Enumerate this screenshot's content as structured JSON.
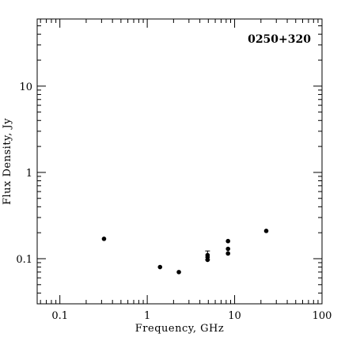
{
  "chart_data": {
    "type": "scatter",
    "title": "0250+320",
    "xlabel": "Frequency, GHz",
    "ylabel": "Flux Density, Jy",
    "xscale": "log",
    "yscale": "log",
    "xlim": [
      0.055,
      100
    ],
    "ylim": [
      0.03,
      60
    ],
    "x_ticks": [
      {
        "value": 0.1,
        "label": "0.1"
      },
      {
        "value": 1,
        "label": "1"
      },
      {
        "value": 10,
        "label": "10"
      },
      {
        "value": 100,
        "label": "100"
      }
    ],
    "y_ticks": [
      {
        "value": 0.1,
        "label": "0.1"
      },
      {
        "value": 1,
        "label": "1"
      },
      {
        "value": 10,
        "label": "10"
      }
    ],
    "grid": false,
    "legend": "none",
    "points": [
      {
        "x": 0.32,
        "y": 0.17
      },
      {
        "x": 1.4,
        "y": 0.08
      },
      {
        "x": 2.3,
        "y": 0.07
      },
      {
        "x": 4.9,
        "y": 0.11,
        "yerr": 0.013
      },
      {
        "x": 4.9,
        "y": 0.104
      },
      {
        "x": 4.9,
        "y": 0.097
      },
      {
        "x": 8.4,
        "y": 0.16
      },
      {
        "x": 8.4,
        "y": 0.13
      },
      {
        "x": 8.4,
        "y": 0.115
      },
      {
        "x": 23,
        "y": 0.21
      }
    ],
    "marker_color": "#000000"
  }
}
